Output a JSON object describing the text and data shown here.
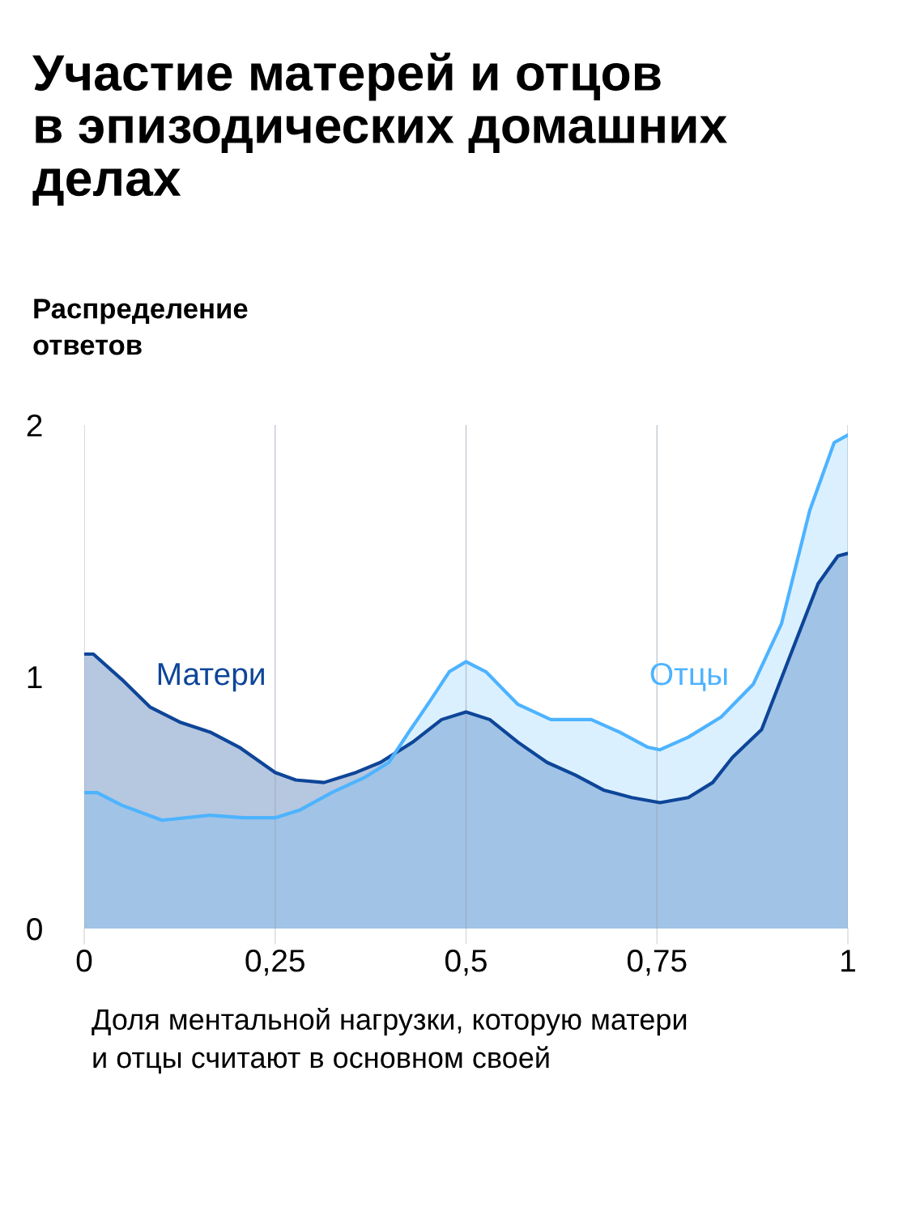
{
  "chart_data": {
    "type": "area",
    "title": "Участие матерей и отцов\nв эпизодических домашних\nделах",
    "ylabel": "Распределение\nответов",
    "xlabel": "Доля ментальной нагрузки, которую матери\nи отцы считают в основном своей",
    "xlim": [
      0,
      1
    ],
    "xticks": [
      0,
      {
        "value": 0.25,
        "label": "0,25"
      },
      {
        "value": 0.5,
        "label": "0,5"
      },
      {
        "value": 0.75,
        "label": "0,75"
      },
      1
    ],
    "ylim": [
      0,
      2
    ],
    "yticks": [
      0,
      1,
      2
    ],
    "grid": "x",
    "legend": false,
    "series": [
      {
        "name": "Матери",
        "color": "#0d4598",
        "x": [
          0,
          0.012,
          0.049,
          0.086,
          0.125,
          0.165,
          0.203,
          0.25,
          0.277,
          0.314,
          0.356,
          0.388,
          0.43,
          0.468,
          0.5,
          0.531,
          0.568,
          0.606,
          0.643,
          0.68,
          0.717,
          0.754,
          0.791,
          0.823,
          0.849,
          0.887,
          0.924,
          0.961,
          0.987,
          1
        ],
        "values": [
          1.09,
          1.09,
          0.99,
          0.88,
          0.82,
          0.78,
          0.72,
          0.62,
          0.59,
          0.58,
          0.62,
          0.66,
          0.74,
          0.83,
          0.86,
          0.83,
          0.74,
          0.66,
          0.61,
          0.55,
          0.52,
          0.5,
          0.52,
          0.58,
          0.68,
          0.79,
          1.08,
          1.37,
          1.48,
          1.49
        ]
      },
      {
        "name": "Отцы",
        "color": "#4db3ff",
        "x": [
          0,
          0.017,
          0.049,
          0.102,
          0.165,
          0.208,
          0.25,
          0.282,
          0.324,
          0.367,
          0.399,
          0.425,
          0.452,
          0.478,
          0.5,
          0.526,
          0.568,
          0.611,
          0.664,
          0.701,
          0.738,
          0.754,
          0.791,
          0.834,
          0.876,
          0.913,
          0.95,
          0.982,
          1
        ],
        "values": [
          0.54,
          0.54,
          0.49,
          0.43,
          0.45,
          0.44,
          0.44,
          0.47,
          0.54,
          0.6,
          0.66,
          0.78,
          0.9,
          1.02,
          1.06,
          1.02,
          0.89,
          0.83,
          0.83,
          0.78,
          0.72,
          0.71,
          0.76,
          0.84,
          0.97,
          1.21,
          1.66,
          1.93,
          1.96
        ]
      }
    ]
  }
}
